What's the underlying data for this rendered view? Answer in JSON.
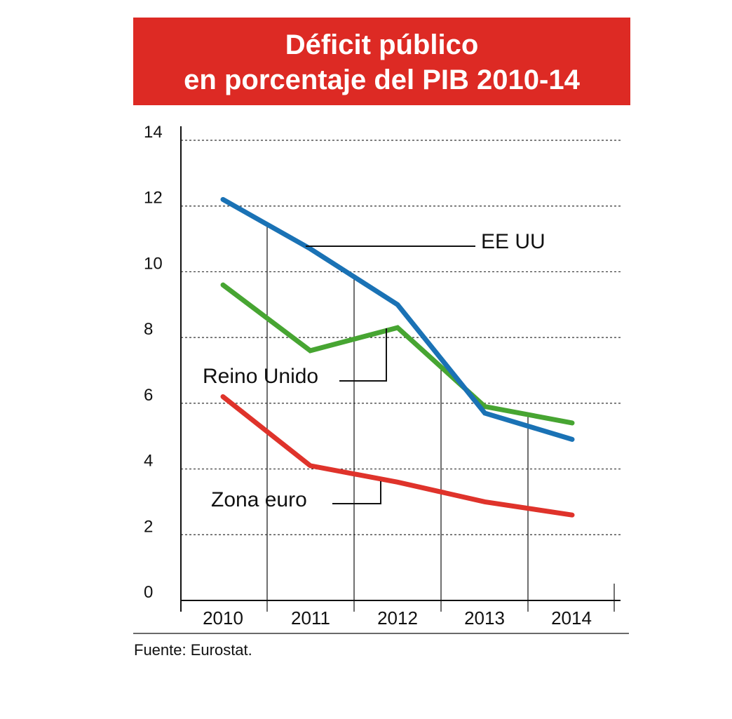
{
  "title_lines": [
    "Déficit público",
    "en porcentaje del PIB 2010-14"
  ],
  "source": "Fuente: Eurostat.",
  "colors": {
    "title_bg": "#dd2a24",
    "title_text": "#ffffff"
  },
  "chart_data": {
    "type": "line",
    "title": "Déficit público en porcentaje del PIB 2010-14",
    "xlabel": "",
    "ylabel": "",
    "categories": [
      "2010",
      "2011",
      "2012",
      "2013",
      "2014"
    ],
    "x": [
      2010,
      2011,
      2012,
      2013,
      2014
    ],
    "ylim": [
      0,
      14
    ],
    "yticks": [
      0,
      2,
      4,
      6,
      8,
      10,
      12,
      14
    ],
    "grid": "horizontal dashed",
    "series": [
      {
        "name": "EE UU",
        "color": "#1a72b5",
        "values": [
          12.2,
          10.7,
          9.0,
          5.7,
          4.9
        ]
      },
      {
        "name": "Reino Unido",
        "color": "#47a532",
        "values": [
          9.6,
          7.6,
          8.3,
          5.9,
          5.4
        ]
      },
      {
        "name": "Zona euro",
        "color": "#df332b",
        "values": [
          6.2,
          4.1,
          3.6,
          3.0,
          2.6
        ]
      }
    ]
  }
}
